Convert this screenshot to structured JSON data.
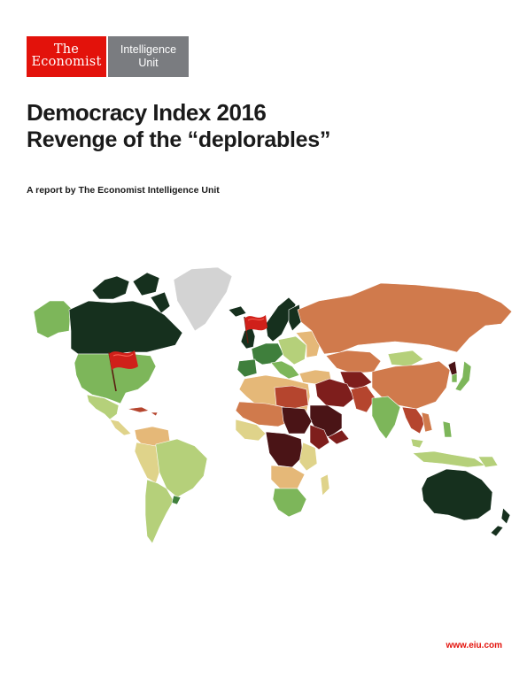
{
  "logos": {
    "economist_line1": "The",
    "economist_line2": "Economist",
    "eiu_line1": "Intelligence",
    "eiu_line2": "Unit"
  },
  "title": "Democracy Index 2016",
  "subtitle": "Revenge of the “deplorables”",
  "byline": "A report by The Economist Intelligence Unit",
  "url": "www.eiu.com",
  "map_palette": {
    "full_democracy": "#16301e",
    "flawed_high": "#3f7f3c",
    "flawed": "#7db65a",
    "flawed_low": "#b5d07a",
    "hybrid_high": "#dfd38a",
    "hybrid": "#e5b878",
    "authoritarian_high": "#d07a4c",
    "authoritarian": "#b5452e",
    "authoritarian_low": "#7e1e1c",
    "authoritarian_lowest": "#4a1416",
    "no_data": "#d3d3d3",
    "brand_red": "#e3120b"
  }
}
